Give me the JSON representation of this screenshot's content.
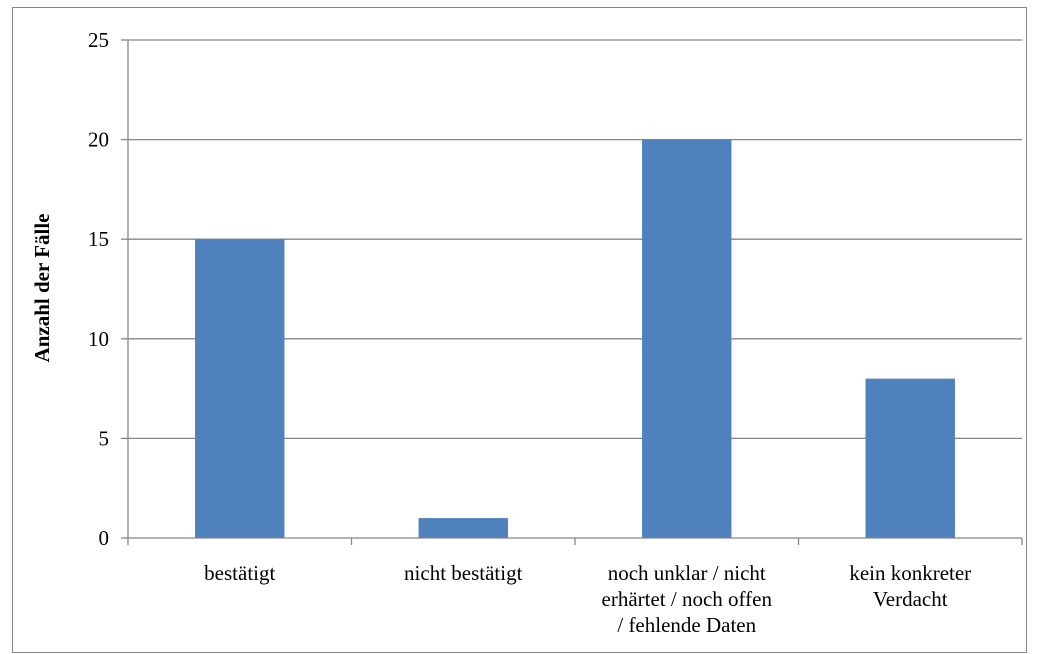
{
  "chart_data": {
    "type": "bar",
    "title": "",
    "xlabel": "",
    "ylabel": "Anzahl der  Fälle",
    "categories": [
      [
        "bestätigt"
      ],
      [
        "nicht bestätigt"
      ],
      [
        "noch unklar / nicht",
        "erhärtet / noch offen",
        "/ fehlende Daten"
      ],
      [
        "kein konkreter",
        "Verdacht"
      ]
    ],
    "values": [
      15,
      1,
      20,
      8
    ],
    "ylim": [
      0,
      25
    ],
    "yticks": [
      0,
      5,
      10,
      15,
      20,
      25
    ],
    "grid": true,
    "legend": "none",
    "colors": {
      "bar": "#4f81bd",
      "grid": "#868686",
      "axis": "#868686",
      "frame": "#868686"
    }
  }
}
